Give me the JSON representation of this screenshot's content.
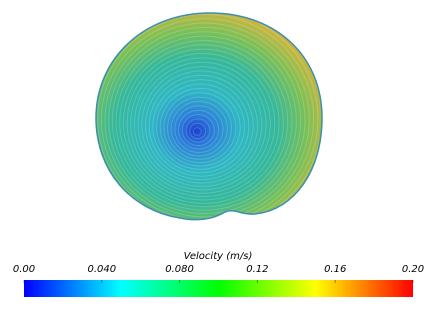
{
  "chart_data": {
    "type": "field",
    "colorbar_label": "Velocity (m/s)",
    "clim": [
      0,
      0.2
    ],
    "cticks": [
      {
        "value": 0,
        "label": "0.00"
      },
      {
        "value": 0.04,
        "label": "0.040"
      },
      {
        "value": 0.08,
        "label": "0.080"
      },
      0.12,
      0.16,
      {
        "value": 0.2,
        "label": "0.20"
      }
    ],
    "colormap": [
      "#0000ff",
      "#00ffff",
      "#00ff00",
      "#ffff00",
      "#ff0000"
    ]
  }
}
